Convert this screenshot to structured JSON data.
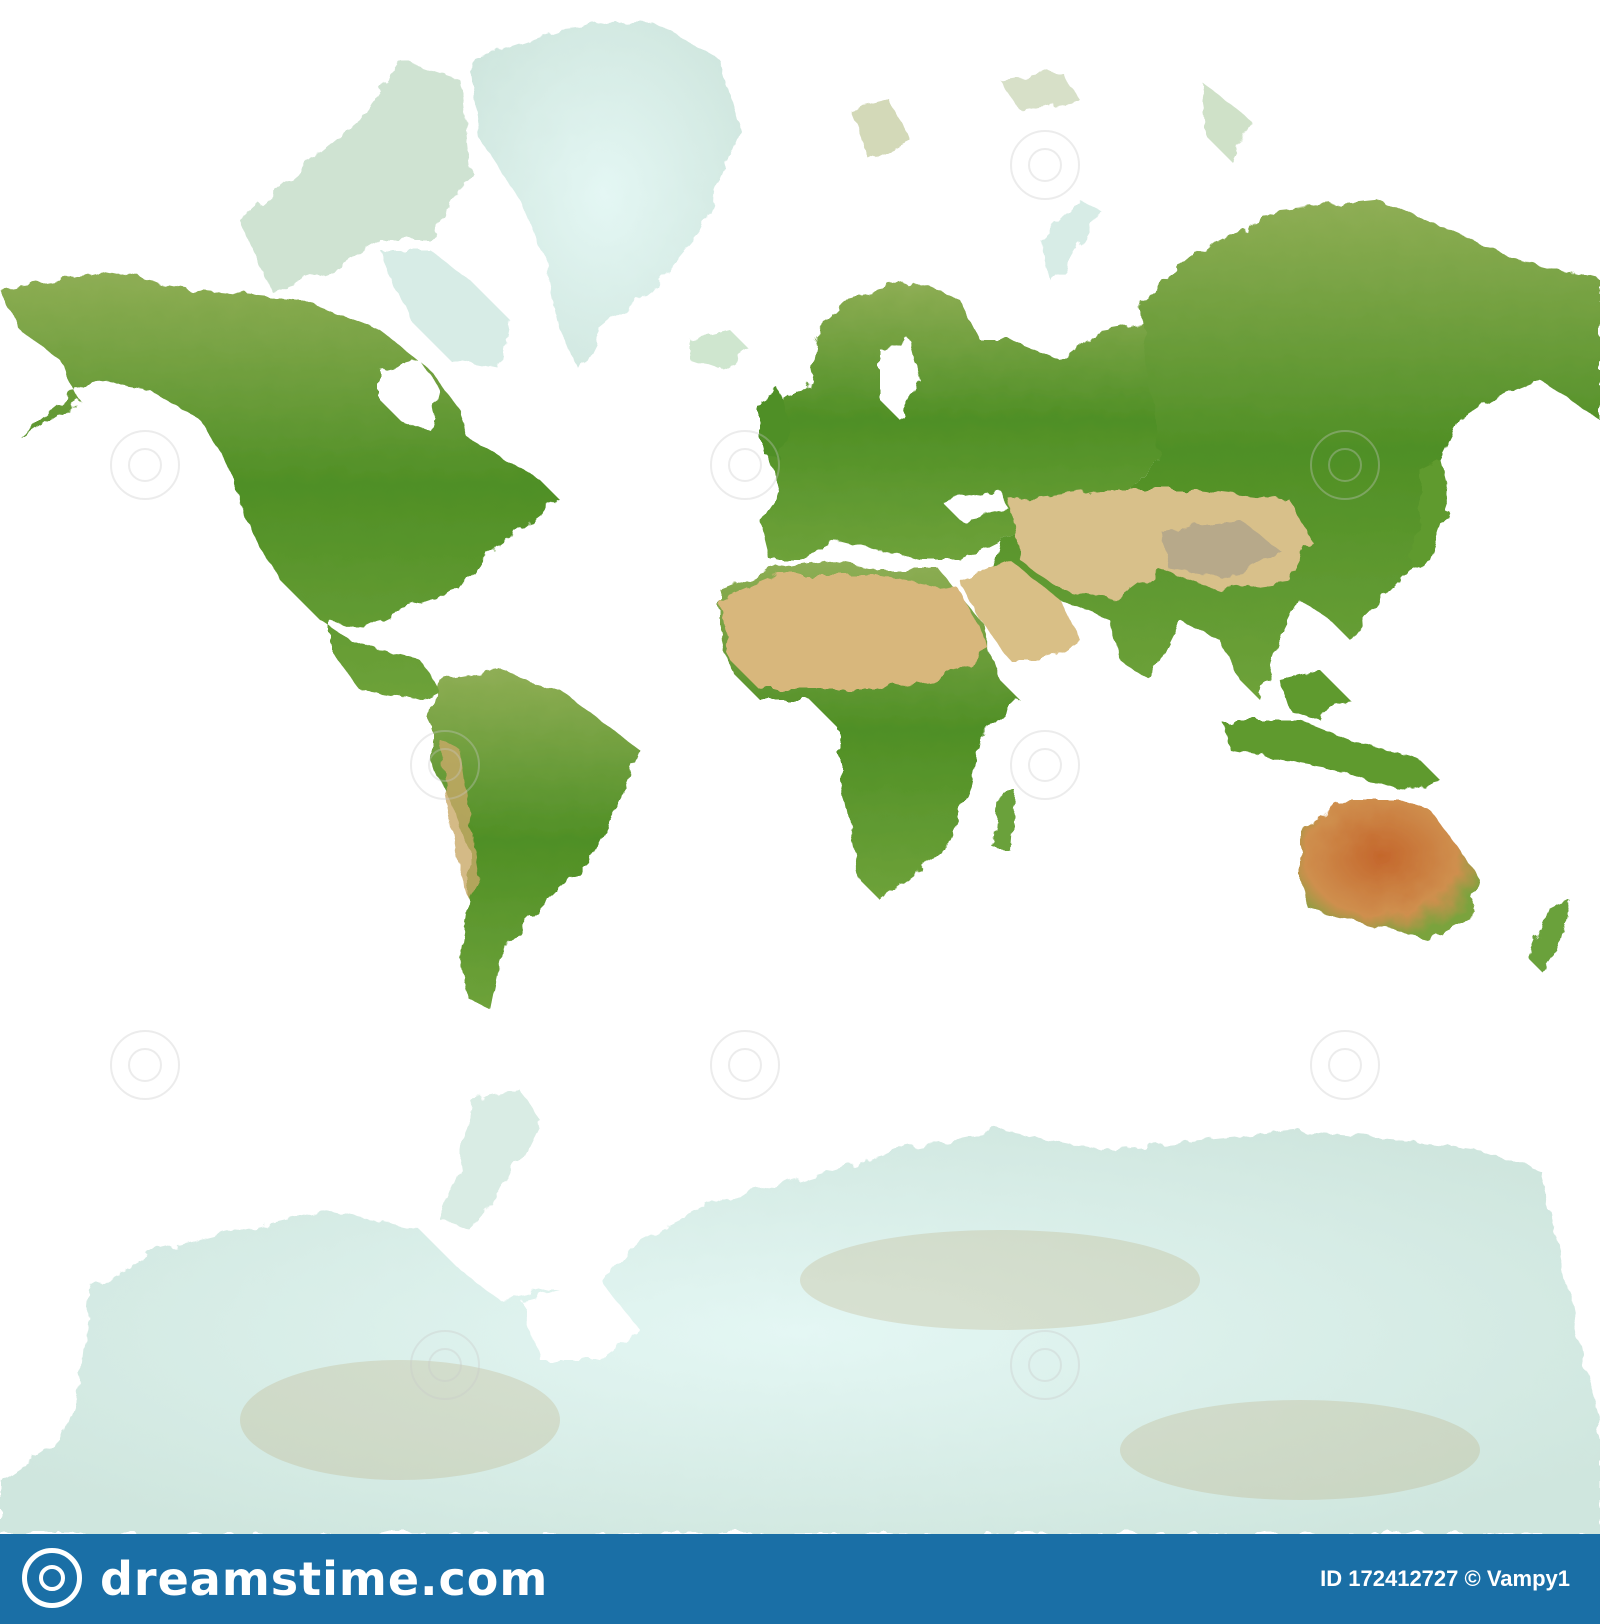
{
  "map": {
    "land_color": "#5f9a2e",
    "ice_color": "#d9f1ef",
    "desert_color": "#d8c08a",
    "arid_red_color": "#c8743a"
  },
  "footer": {
    "brand": "dreamstime.com",
    "credit": "ID 172412727 © Vampy1",
    "background": "#1a6fa6",
    "logo_icon": "dreamstime-spiral-icon"
  }
}
